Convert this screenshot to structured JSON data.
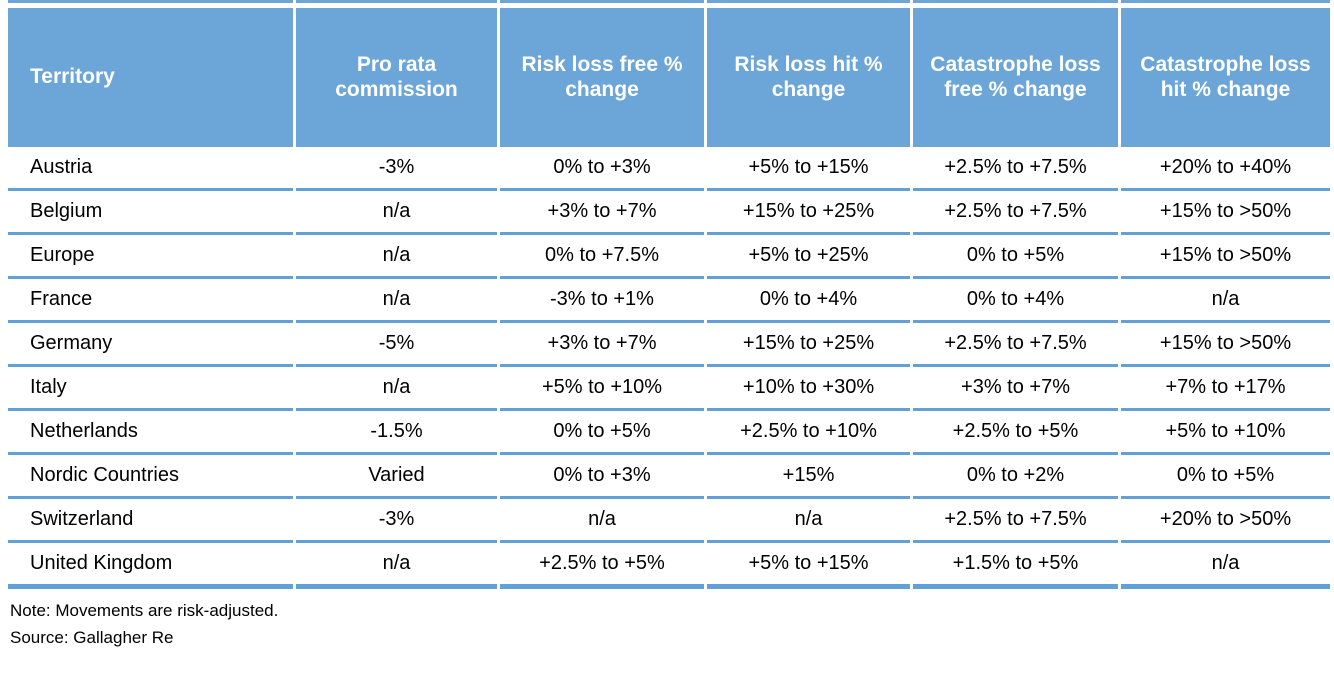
{
  "chart_data": {
    "type": "table",
    "columns": [
      "Territory",
      "Pro rata commission",
      "Risk loss free % change",
      "Risk loss hit % change",
      "Catastrophe loss free % change",
      "Catastrophe loss hit % change"
    ],
    "rows": [
      [
        "Austria",
        "-3%",
        "0% to +3%",
        "+5% to +15%",
        "+2.5% to +7.5%",
        "+20% to +40%"
      ],
      [
        "Belgium",
        "n/a",
        "+3% to +7%",
        "+15% to +25%",
        "+2.5% to +7.5%",
        "+15% to >50%"
      ],
      [
        "Europe",
        "n/a",
        "0% to +7.5%",
        "+5% to +25%",
        "0% to +5%",
        "+15% to >50%"
      ],
      [
        "France",
        "n/a",
        "-3% to +1%",
        "0% to +4%",
        "0% to +4%",
        "n/a"
      ],
      [
        "Germany",
        "-5%",
        "+3% to +7%",
        "+15% to +25%",
        "+2.5% to +7.5%",
        "+15% to >50%"
      ],
      [
        "Italy",
        "n/a",
        "+5% to +10%",
        "+10% to +30%",
        "+3% to +7%",
        "+7% to +17%"
      ],
      [
        "Netherlands",
        "-1.5%",
        "0% to +5%",
        "+2.5% to +10%",
        "+2.5% to +5%",
        "+5% to +10%"
      ],
      [
        "Nordic Countries",
        "Varied",
        "0% to +3%",
        "+15%",
        "0% to +2%",
        "0% to +5%"
      ],
      [
        "Switzerland",
        "-3%",
        "n/a",
        "n/a",
        "+2.5% to +7.5%",
        "+20% to >50%"
      ],
      [
        "United Kingdom",
        "n/a",
        "+2.5% to +5%",
        "+5% to +15%",
        "+1.5% to +5%",
        "n/a"
      ]
    ],
    "legend_position": "none",
    "grid": "horizontal-rules-only"
  },
  "footer": {
    "note": "Note: Movements are risk-adjusted.",
    "source": "Source: Gallagher Re"
  },
  "colors": {
    "header_bg": "#6CA6D8",
    "row_line": "#61A1D8",
    "header_text": "#FFFFFF",
    "body_text": "#000000"
  }
}
